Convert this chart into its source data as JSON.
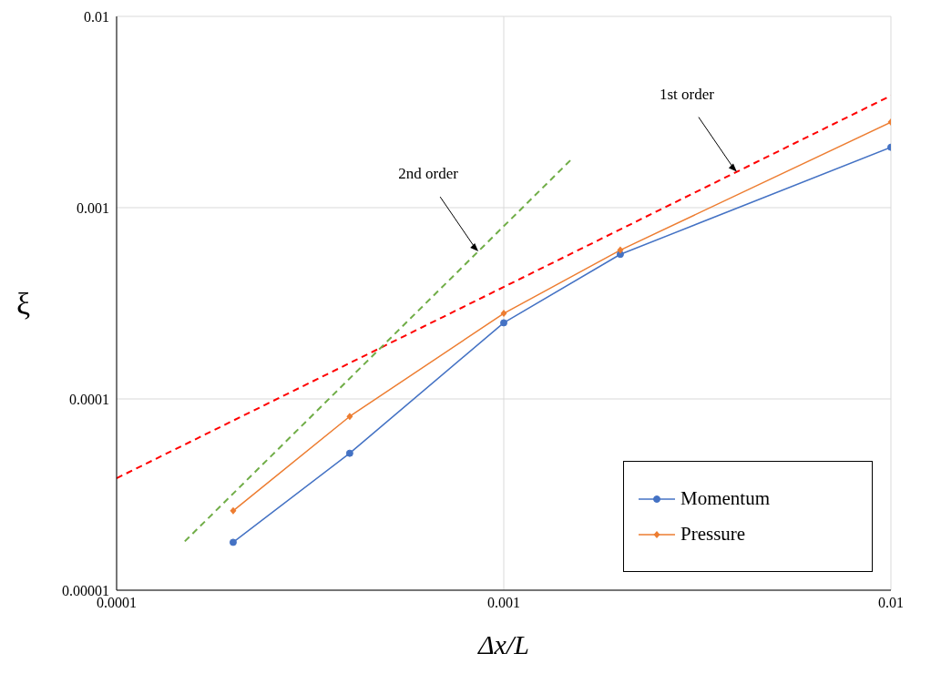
{
  "chart_data": {
    "type": "line",
    "xlabel": "Δx/L",
    "ylabel": "ξ",
    "log": "xy",
    "grid": true,
    "legend": "bottom right",
    "xlim": [
      0.0001,
      0.01
    ],
    "xticks": [
      0.0001,
      0.001,
      0.01
    ],
    "ylim": [
      1e-05,
      0.01
    ],
    "yticks": [
      {
        "value": 1e-05,
        "label": "0.00001"
      },
      0.0001,
      0.001,
      0.01
    ],
    "series": [
      {
        "name": "Momentum",
        "color": "#4472c4",
        "marker": "circle",
        "x": [
          0.0002,
          0.0004,
          0.001,
          0.002,
          0.01
        ],
        "values": [
          1.78e-05,
          5.2e-05,
          0.00025,
          0.00057,
          0.00207
        ]
      },
      {
        "name": "Pressure",
        "color": "#ed7d31",
        "marker": "diamond",
        "x": [
          0.0002,
          0.0004,
          0.001,
          0.002,
          0.01
        ],
        "values": [
          2.6e-05,
          8.1e-05,
          0.00028,
          0.0006,
          0.0028
        ]
      },
      {
        "color": "#ff0000",
        "marker": "none",
        "line_style": "dashed",
        "x": [
          0.0001,
          0.01
        ],
        "values": [
          3.85e-05,
          0.00385
        ]
      },
      {
        "color": "#70ad47",
        "marker": "none",
        "line_style": "dashed",
        "x": [
          0.00015,
          0.0015
        ],
        "values": [
          1.8e-05,
          0.0018
        ]
      }
    ],
    "annotations": [
      {
        "text": "1st order",
        "x": 0.004,
        "y": 0.00154
      },
      {
        "text": "2nd order",
        "x": 0.00086,
        "y": 0.00059
      }
    ]
  }
}
